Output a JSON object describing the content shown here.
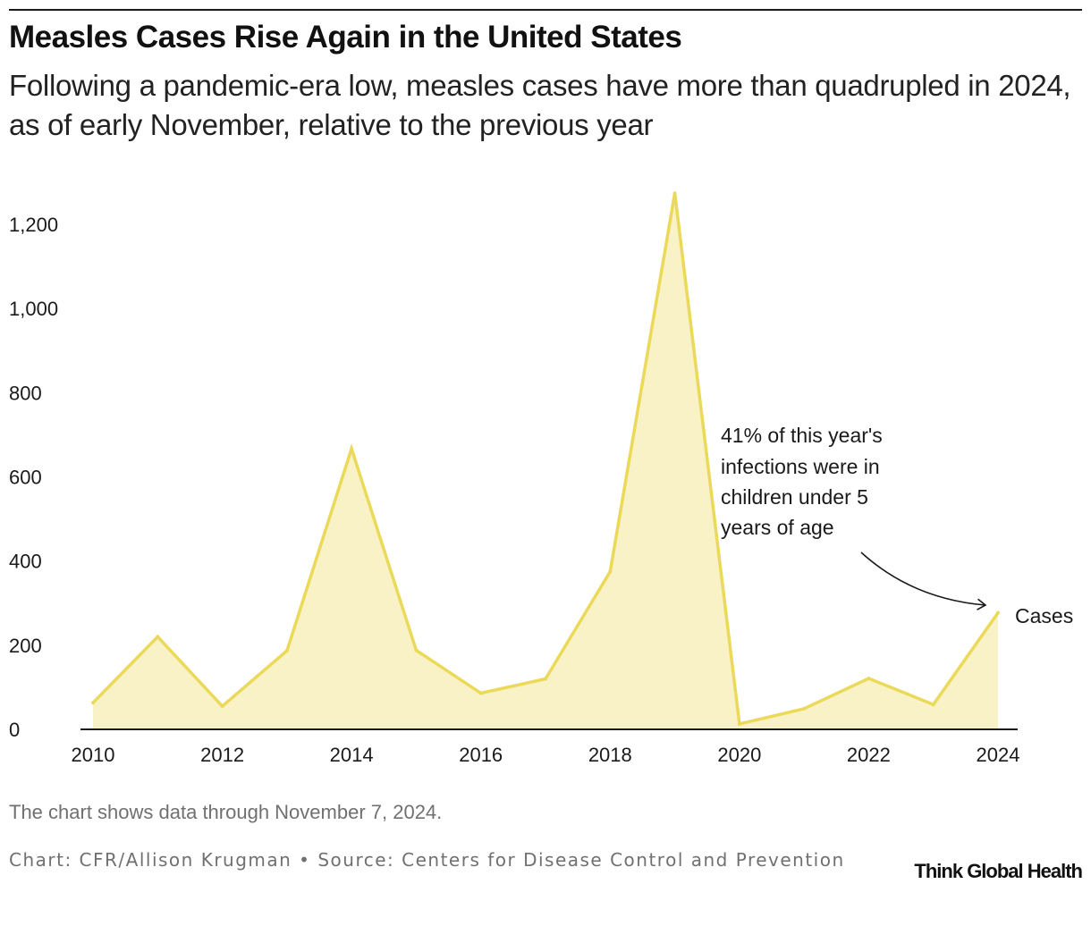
{
  "header": {
    "title": "Measles Cases Rise Again in the United States",
    "subtitle": "Following a pandemic-era low, measles cases have more than quadrupled in 2024, as of early November, relative to the previous year"
  },
  "footer": {
    "note": "The chart shows data through November 7, 2024.",
    "credit": "Chart: CFR/Allison Krugman • Source: Centers for Disease Control and Prevention",
    "brand": "Think Global Health"
  },
  "colors": {
    "line": "#ebd95a",
    "fill": "#f8f2c6",
    "axis": "#1a1a1a"
  },
  "chart_data": {
    "type": "area",
    "title": "Measles Cases Rise Again in the United States",
    "xlabel": "",
    "ylabel": "",
    "x": [
      2010,
      2011,
      2012,
      2013,
      2014,
      2015,
      2016,
      2017,
      2018,
      2019,
      2020,
      2021,
      2022,
      2023,
      2024
    ],
    "series": [
      {
        "name": "Cases",
        "values": [
          63,
          220,
          55,
          187,
          667,
          188,
          86,
          120,
          375,
          1274,
          13,
          49,
          121,
          59,
          277
        ]
      }
    ],
    "xlim": [
      2010,
      2024
    ],
    "ylim": [
      0,
      1300
    ],
    "xticks": [
      "2010",
      "2012",
      "2014",
      "2016",
      "2018",
      "2020",
      "2022",
      "2024"
    ],
    "yticks": [
      "0",
      "200",
      "400",
      "600",
      "800",
      "1,000",
      "1,200"
    ],
    "grid": false,
    "legend": "none",
    "annotation": {
      "lines": [
        "41% of this year's",
        "infections were in",
        "children under 5",
        "years of age"
      ],
      "points_to": 2024
    }
  }
}
